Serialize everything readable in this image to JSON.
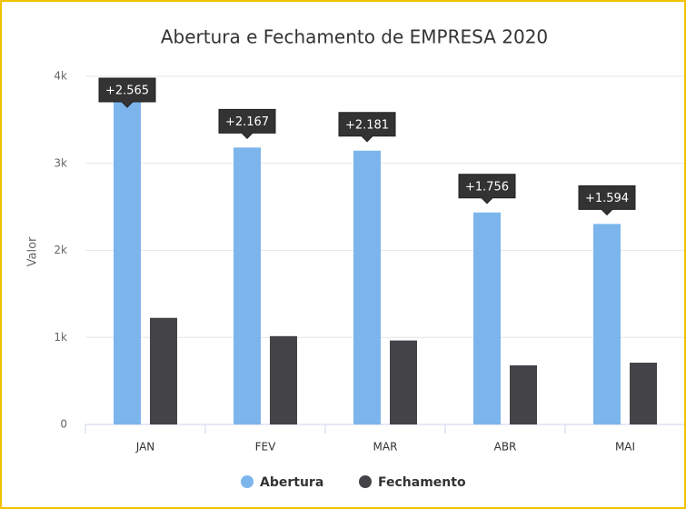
{
  "chart_data": {
    "type": "bar",
    "title": "Abertura e Fechamento de EMPRESA 2020",
    "y_label": "Valor",
    "categories": [
      "JAN",
      "FEV",
      "MAR",
      "ABR",
      "MAI"
    ],
    "series": [
      {
        "name": "Abertura",
        "color": "#7cb5ec",
        "values": [
          3790,
          3182,
          3146,
          2436,
          2304
        ]
      },
      {
        "name": "Fechamento",
        "color": "#434348",
        "values": [
          1225,
          1015,
          965,
          680,
          710
        ]
      }
    ],
    "annotations": [
      "+2.565",
      "+2.167",
      "+2.181",
      "+1.756",
      "+1.594"
    ],
    "ylim": [
      0,
      4000
    ],
    "yticks": [
      0,
      {
        "value": 1000,
        "label": "1k"
      },
      {
        "value": 2000,
        "label": "2k"
      },
      {
        "value": 3000,
        "label": "3k"
      },
      {
        "value": 4000,
        "label": "4k"
      }
    ],
    "grid": true
  }
}
